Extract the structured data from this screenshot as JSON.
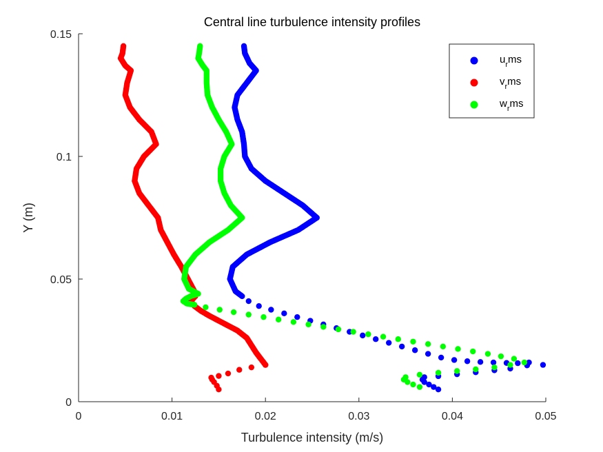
{
  "chart_data": {
    "type": "scatter",
    "title": "Central line turbulence intensity profiles",
    "xlabel": "Turbulence intensity (m/s)",
    "ylabel": "Y (m)",
    "xlim": [
      0,
      0.05
    ],
    "ylim": [
      0,
      0.15
    ],
    "xticks": [
      0,
      0.01,
      0.02,
      0.03,
      0.04,
      0.05
    ],
    "xtick_labels": [
      "0",
      "0.01",
      "0.02",
      "0.03",
      "0.04",
      "0.05"
    ],
    "yticks": [
      0,
      0.05,
      0.1,
      0.15
    ],
    "ytick_labels": [
      "0",
      "0.05",
      "0.1",
      "0.15"
    ],
    "grid": false,
    "legend_position": "top-right",
    "series": [
      {
        "name": "u_rms",
        "legend_main": "u",
        "legend_sub": "r",
        "legend_tail": "ms",
        "color": "#0000ff",
        "profile": [
          [
            0.0177,
            0.145
          ],
          [
            0.0178,
            0.142
          ],
          [
            0.0183,
            0.138
          ],
          [
            0.019,
            0.135
          ],
          [
            0.018,
            0.13
          ],
          [
            0.017,
            0.125
          ],
          [
            0.0167,
            0.12
          ],
          [
            0.017,
            0.115
          ],
          [
            0.0175,
            0.11
          ],
          [
            0.0177,
            0.105
          ],
          [
            0.0178,
            0.1
          ],
          [
            0.0185,
            0.095
          ],
          [
            0.02,
            0.09
          ],
          [
            0.022,
            0.085
          ],
          [
            0.024,
            0.08
          ],
          [
            0.0255,
            0.075
          ],
          [
            0.0235,
            0.07
          ],
          [
            0.0205,
            0.065
          ],
          [
            0.018,
            0.06
          ],
          [
            0.0165,
            0.055
          ],
          [
            0.0162,
            0.05
          ],
          [
            0.0168,
            0.045
          ],
          [
            0.0175,
            0.043
          ]
        ],
        "tail": [
          [
            0.0182,
            0.041
          ],
          [
            0.0193,
            0.039
          ],
          [
            0.0206,
            0.0375
          ],
          [
            0.022,
            0.036
          ],
          [
            0.0234,
            0.0345
          ],
          [
            0.0248,
            0.033
          ],
          [
            0.0262,
            0.0315
          ],
          [
            0.0276,
            0.03
          ],
          [
            0.029,
            0.0285
          ],
          [
            0.0304,
            0.027
          ],
          [
            0.0318,
            0.0255
          ],
          [
            0.0332,
            0.024
          ],
          [
            0.0346,
            0.0225
          ],
          [
            0.036,
            0.021
          ],
          [
            0.0374,
            0.0195
          ],
          [
            0.0388,
            0.018
          ],
          [
            0.0402,
            0.017
          ],
          [
            0.0416,
            0.0165
          ],
          [
            0.043,
            0.0162
          ],
          [
            0.0444,
            0.016
          ],
          [
            0.0458,
            0.0158
          ],
          [
            0.047,
            0.0157
          ],
          [
            0.0482,
            0.016
          ],
          [
            0.0497,
            0.015
          ],
          [
            0.048,
            0.0148
          ],
          [
            0.0462,
            0.0135
          ],
          [
            0.0445,
            0.0128
          ],
          [
            0.0425,
            0.012
          ],
          [
            0.0405,
            0.0112
          ],
          [
            0.0385,
            0.0104
          ],
          [
            0.037,
            0.01
          ],
          [
            0.0368,
            0.009
          ],
          [
            0.037,
            0.008
          ],
          [
            0.0375,
            0.007
          ],
          [
            0.038,
            0.006
          ],
          [
            0.0385,
            0.005
          ]
        ]
      },
      {
        "name": "v_rms",
        "legend_main": "v",
        "legend_sub": "r",
        "legend_tail": "ms",
        "color": "#ff0000",
        "profile": [
          [
            0.0048,
            0.145
          ],
          [
            0.0047,
            0.142
          ],
          [
            0.0045,
            0.14
          ],
          [
            0.005,
            0.137
          ],
          [
            0.0056,
            0.135
          ],
          [
            0.0052,
            0.13
          ],
          [
            0.005,
            0.125
          ],
          [
            0.0055,
            0.12
          ],
          [
            0.0065,
            0.115
          ],
          [
            0.0078,
            0.11
          ],
          [
            0.0083,
            0.105
          ],
          [
            0.007,
            0.1
          ],
          [
            0.0062,
            0.095
          ],
          [
            0.006,
            0.09
          ],
          [
            0.0065,
            0.085
          ],
          [
            0.0075,
            0.08
          ],
          [
            0.0085,
            0.075
          ],
          [
            0.0088,
            0.07
          ],
          [
            0.0095,
            0.065
          ],
          [
            0.0102,
            0.06
          ],
          [
            0.011,
            0.055
          ],
          [
            0.0117,
            0.05
          ],
          [
            0.0124,
            0.045
          ],
          [
            0.0125,
            0.043
          ],
          [
            0.012,
            0.041
          ],
          [
            0.0124,
            0.039
          ],
          [
            0.0131,
            0.037
          ],
          [
            0.014,
            0.035
          ],
          [
            0.015,
            0.033
          ],
          [
            0.016,
            0.031
          ],
          [
            0.017,
            0.029
          ],
          [
            0.018,
            0.026
          ],
          [
            0.019,
            0.02
          ],
          [
            0.02,
            0.015
          ]
        ],
        "tail": [
          [
            0.02,
            0.015
          ],
          [
            0.0185,
            0.014
          ],
          [
            0.0172,
            0.013
          ],
          [
            0.016,
            0.0115
          ],
          [
            0.015,
            0.0105
          ],
          [
            0.0142,
            0.0098
          ],
          [
            0.0143,
            0.009
          ],
          [
            0.0145,
            0.008
          ],
          [
            0.0148,
            0.0065
          ],
          [
            0.015,
            0.005
          ]
        ]
      },
      {
        "name": "w_rms",
        "legend_main": "w",
        "legend_sub": "r",
        "legend_tail": "ms",
        "color": "#00ff00",
        "profile": [
          [
            0.013,
            0.145
          ],
          [
            0.0129,
            0.142
          ],
          [
            0.0128,
            0.14
          ],
          [
            0.0133,
            0.137
          ],
          [
            0.0137,
            0.135
          ],
          [
            0.0137,
            0.13
          ],
          [
            0.0138,
            0.125
          ],
          [
            0.0143,
            0.12
          ],
          [
            0.015,
            0.115
          ],
          [
            0.0158,
            0.11
          ],
          [
            0.0164,
            0.105
          ],
          [
            0.0156,
            0.1
          ],
          [
            0.0152,
            0.095
          ],
          [
            0.0152,
            0.09
          ],
          [
            0.0156,
            0.085
          ],
          [
            0.0163,
            0.08
          ],
          [
            0.0175,
            0.075
          ],
          [
            0.016,
            0.07
          ],
          [
            0.014,
            0.065
          ],
          [
            0.0125,
            0.06
          ],
          [
            0.0115,
            0.055
          ],
          [
            0.0113,
            0.05
          ],
          [
            0.0118,
            0.046
          ],
          [
            0.0128,
            0.044
          ],
          [
            0.012,
            0.043
          ],
          [
            0.0115,
            0.042
          ],
          [
            0.0112,
            0.041
          ],
          [
            0.0116,
            0.04
          ],
          [
            0.0124,
            0.0395
          ]
        ],
        "tail": [
          [
            0.0136,
            0.0385
          ],
          [
            0.0151,
            0.0375
          ],
          [
            0.0166,
            0.0365
          ],
          [
            0.0182,
            0.0355
          ],
          [
            0.0198,
            0.0345
          ],
          [
            0.0214,
            0.0335
          ],
          [
            0.023,
            0.0325
          ],
          [
            0.0246,
            0.0315
          ],
          [
            0.0262,
            0.0305
          ],
          [
            0.0278,
            0.0295
          ],
          [
            0.0294,
            0.0285
          ],
          [
            0.031,
            0.0275
          ],
          [
            0.0326,
            0.0265
          ],
          [
            0.0342,
            0.0255
          ],
          [
            0.0358,
            0.0245
          ],
          [
            0.0374,
            0.0235
          ],
          [
            0.039,
            0.0225
          ],
          [
            0.0406,
            0.0215
          ],
          [
            0.0422,
            0.0205
          ],
          [
            0.0438,
            0.0195
          ],
          [
            0.0452,
            0.0185
          ],
          [
            0.0466,
            0.0175
          ],
          [
            0.0477,
            0.016
          ],
          [
            0.0462,
            0.015
          ],
          [
            0.0445,
            0.014
          ],
          [
            0.0425,
            0.0132
          ],
          [
            0.0405,
            0.0125
          ],
          [
            0.0385,
            0.0118
          ],
          [
            0.0365,
            0.011
          ],
          [
            0.035,
            0.01
          ],
          [
            0.0348,
            0.009
          ],
          [
            0.0352,
            0.008
          ],
          [
            0.0358,
            0.007
          ],
          [
            0.0365,
            0.006
          ]
        ]
      }
    ]
  }
}
